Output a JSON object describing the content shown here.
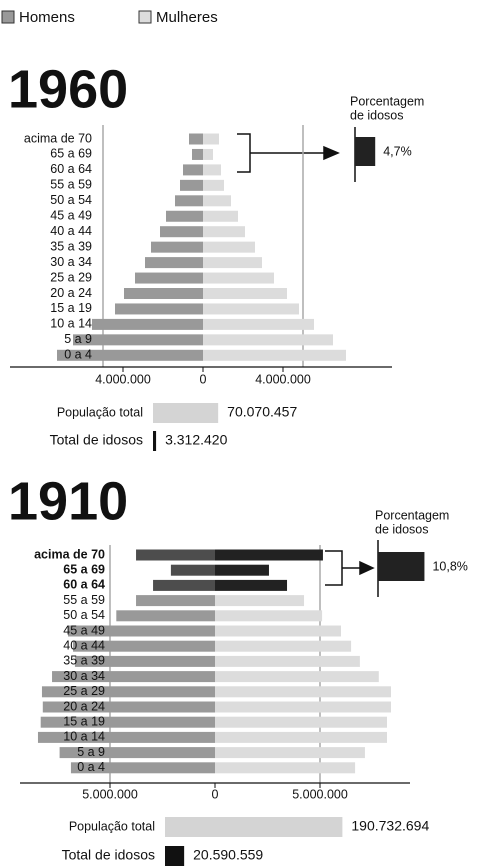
{
  "legend": [
    {
      "name": "Homens",
      "color": "#999999"
    },
    {
      "name": "Mulheres",
      "color": "#dcdcdc"
    }
  ],
  "chart_data": [
    {
      "type": "pyramid",
      "title": "1960",
      "categories": [
        "acima de 70",
        "65 a 69",
        "60 a 64",
        "55 a 59",
        "50 a 54",
        "45 a 49",
        "40 a 44",
        "35 a 39",
        "30 a 34",
        "25 a 29",
        "20 a 24",
        "15 a 19",
        "10 a 14",
        "5 a 9",
        "0 a 4"
      ],
      "series": [
        {
          "color": "#999999",
          "side": "left",
          "values": [
            700000,
            550000,
            1000000,
            1150000,
            1400000,
            1850000,
            2150000,
            2600000,
            2900000,
            3400000,
            3950000,
            4400000,
            5550000,
            6500000,
            7300000
          ]
        },
        {
          "color": "#dcdcdc",
          "side": "right",
          "values": [
            800000,
            500000,
            900000,
            1050000,
            1400000,
            1750000,
            2100000,
            2600000,
            2950000,
            3550000,
            4200000,
            4800000,
            5550000,
            6500000,
            7150000
          ]
        }
      ],
      "xlim": [
        -8000000,
        8000000
      ],
      "xticks": [
        {
          "value": -4000000,
          "label": "4.000.000"
        },
        0,
        {
          "value": 4000000,
          "label": "4.000.000"
        }
      ],
      "grid_values": [
        -5000000,
        5000000
      ],
      "elderly_label": [
        "Porcentagem",
        "de idosos"
      ],
      "elderly_share": 4.7,
      "elderly_share_label": "4,7%",
      "elderly_color": "#222222",
      "totals": [
        {
          "label": "População total",
          "value": 70070457,
          "value_label": "70.070.457",
          "color": "#d4d4d4"
        },
        {
          "label": "Total de idosos",
          "value": 3312420,
          "value_label": "3.312.420",
          "color": "#111111"
        }
      ]
    },
    {
      "type": "pyramid",
      "title": "1910",
      "categories": [
        "acima de 70",
        "65 a 69",
        "60 a 64",
        "55 a 59",
        "50 a 54",
        "45 a 49",
        "40 a 44",
        "35 a 39",
        "30 a 34",
        "25 a 29",
        "20 a 24",
        "15 a 19",
        "10 a 14",
        "5 a 9",
        "0 a 4"
      ],
      "highlight_count": 3,
      "series": [
        {
          "color": "#999999",
          "highlight_color": "#4d4d4d",
          "side": "left",
          "values": [
            3760000,
            2100000,
            2950000,
            3760000,
            4700000,
            7000000,
            6760000,
            6670000,
            7760000,
            8240000,
            8200000,
            8300000,
            8430000,
            7400000,
            6860000
          ]
        },
        {
          "color": "#dcdcdc",
          "highlight_color": "#222222",
          "side": "right",
          "values": [
            5140000,
            2570000,
            3430000,
            4240000,
            5100000,
            6000000,
            6480000,
            6900000,
            7800000,
            8380000,
            8380000,
            8190000,
            8190000,
            7140000,
            6670000
          ]
        }
      ],
      "xlim": [
        -8500000,
        8500000
      ],
      "xticks": [
        {
          "value": -5000000,
          "label": "5.000.000"
        },
        0,
        {
          "value": 5000000,
          "label": "5.000.000"
        }
      ],
      "grid_values": [
        -5000000,
        5000000
      ],
      "elderly_label": [
        "Porcentagem",
        "de idosos"
      ],
      "elderly_share": 10.8,
      "elderly_share_label": "10,8%",
      "elderly_color": "#222222",
      "totals": [
        {
          "label": "População total",
          "value": 190732694,
          "value_label": "190.732.694",
          "color": "#d4d4d4"
        },
        {
          "label": "Total de idosos",
          "value": 20590559,
          "value_label": "20.590.559",
          "color": "#111111"
        }
      ]
    }
  ]
}
